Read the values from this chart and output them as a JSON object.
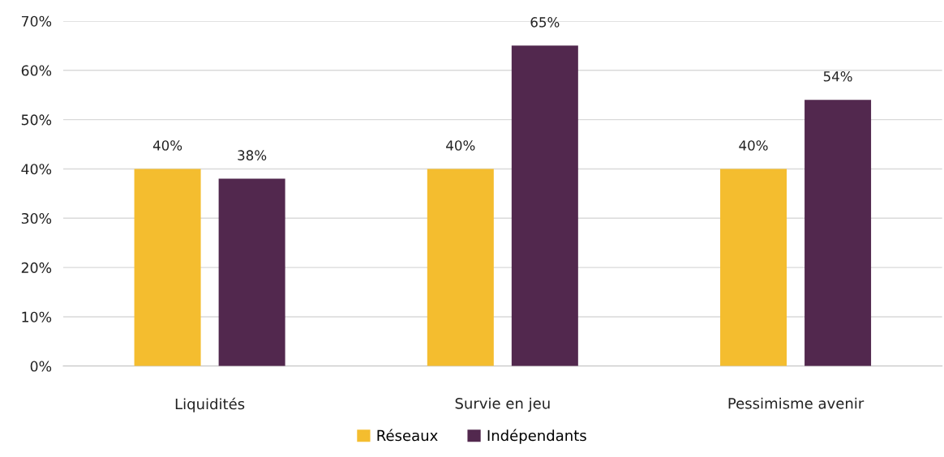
{
  "chart_data": {
    "type": "bar",
    "categories": [
      "Liquidités",
      "Survie en jeu",
      "Pessimisme avenir"
    ],
    "series": [
      {
        "name": "Réseaux",
        "color": "#f4bd2f",
        "values": [
          40,
          40,
          40
        ],
        "value_labels": [
          "40%",
          "40%",
          "40%"
        ]
      },
      {
        "name": "Indépendants",
        "color": "#52284e",
        "values": [
          38,
          65,
          54
        ],
        "value_labels": [
          "38%",
          "65%",
          "54%"
        ]
      }
    ],
    "ylim": [
      0,
      70
    ],
    "yticks": [
      {
        "value": 0,
        "label": "0%"
      },
      {
        "value": 10,
        "label": "10%"
      },
      {
        "value": 20,
        "label": "20%"
      },
      {
        "value": 30,
        "label": "30%"
      },
      {
        "value": 40,
        "label": "40%"
      },
      {
        "value": 50,
        "label": "50%"
      },
      {
        "value": 60,
        "label": "60%"
      },
      {
        "value": 70,
        "label": "70%"
      }
    ],
    "grid": "y",
    "legend": "bottom"
  }
}
